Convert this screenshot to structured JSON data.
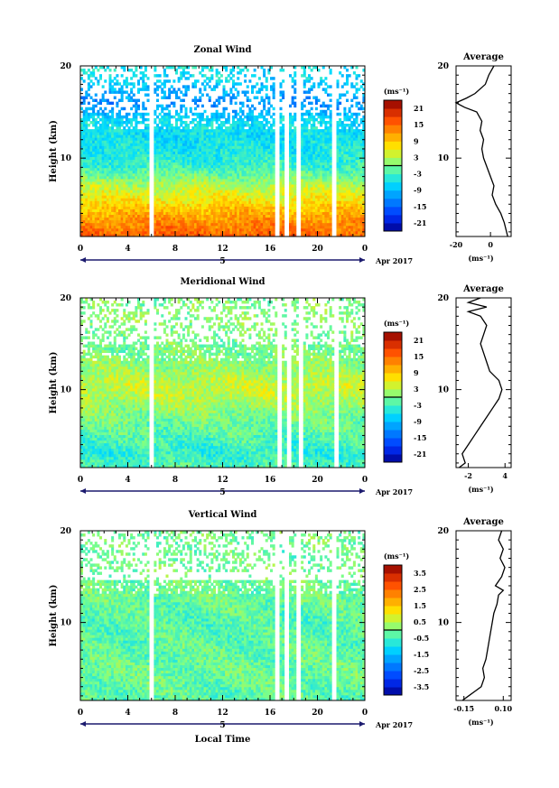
{
  "chart_data": [
    {
      "type": "heatmap",
      "title": "Zonal Wind",
      "xlabel": "",
      "ylabel": "Height (km)",
      "xlim": [
        0,
        24
      ],
      "ylim": [
        1.5,
        20
      ],
      "x_ticks": [
        "0",
        "4",
        "8",
        "12",
        "16",
        "20",
        "0"
      ],
      "x_tick_values": [
        0,
        4,
        8,
        12,
        16,
        20,
        24
      ],
      "y_ticks": [
        "20",
        "10"
      ],
      "y_tick_values": [
        20,
        10
      ],
      "day_label": "5",
      "date_label": "Apr 2017",
      "colorbar": {
        "label": "(ms⁻¹)",
        "ticks": [
          "21",
          "15",
          "9",
          "3",
          "-3",
          "-9",
          "-15",
          "-21"
        ],
        "tick_values": [
          21,
          15,
          9,
          3,
          -3,
          -9,
          -15,
          -21
        ],
        "range": [
          -24,
          24
        ]
      },
      "profile_range": [
        -20,
        12
      ],
      "levels": [
        {
          "h": 1.5,
          "v": 16
        },
        {
          "h": 3,
          "v": 13
        },
        {
          "h": 5,
          "v": 8
        },
        {
          "h": 7,
          "v": 3
        },
        {
          "h": 9,
          "v": -3
        },
        {
          "h": 10.5,
          "v": -5
        },
        {
          "h": 12,
          "v": -6
        },
        {
          "h": 14,
          "v": -6
        },
        {
          "h": 16,
          "v": -12
        },
        {
          "h": 18,
          "v": -8
        },
        {
          "h": 20,
          "v": -5
        }
      ],
      "gaps": [
        [
          5.7,
          6.1
        ],
        [
          16.5,
          16.8
        ],
        [
          17.2,
          17.5
        ],
        [
          18.2,
          18.5
        ],
        [
          21.2,
          21.6
        ]
      ],
      "average_profile": {
        "title": "Average",
        "xlabel": "(ms⁻¹)",
        "x_ticks": [
          "-20",
          "0"
        ],
        "x_tick_values": [
          -20,
          0
        ],
        "y_ticks": [
          "20",
          "10"
        ],
        "y_tick_values": [
          20,
          10
        ],
        "height": [
          1.5,
          3,
          4,
          5,
          6,
          7,
          8,
          9,
          10,
          11,
          12,
          13,
          14,
          15,
          15.5,
          16,
          16.5,
          17,
          18,
          19,
          20
        ],
        "value": [
          10,
          8,
          6,
          3,
          1,
          2,
          0,
          -2,
          -4,
          -5,
          -4,
          -6,
          -5,
          -8,
          -15,
          -20,
          -14,
          -9,
          -3,
          -1,
          2
        ]
      }
    },
    {
      "type": "heatmap",
      "title": "Meridional Wind",
      "xlabel": "",
      "ylabel": "Height (km)",
      "xlim": [
        0,
        24
      ],
      "ylim": [
        1.5,
        20
      ],
      "x_ticks": [
        "0",
        "4",
        "8",
        "12",
        "16",
        "20",
        "0"
      ],
      "x_tick_values": [
        0,
        4,
        8,
        12,
        16,
        20,
        24
      ],
      "y_ticks": [
        "20",
        "10"
      ],
      "y_tick_values": [
        20,
        10
      ],
      "day_label": "5",
      "date_label": "Apr 2017",
      "colorbar": {
        "label": "(ms⁻¹)",
        "ticks": [
          "21",
          "15",
          "9",
          "3",
          "-3",
          "-9",
          "-15",
          "-21"
        ],
        "tick_values": [
          21,
          15,
          9,
          3,
          -3,
          -9,
          -15,
          -21
        ],
        "range": [
          -24,
          24
        ]
      },
      "profile_range": [
        -4,
        5
      ],
      "levels": [
        {
          "h": 1.5,
          "v": -2
        },
        {
          "h": 3,
          "v": -4
        },
        {
          "h": 5,
          "v": -2
        },
        {
          "h": 7,
          "v": 0
        },
        {
          "h": 9,
          "v": 3
        },
        {
          "h": 10.5,
          "v": 4
        },
        {
          "h": 12,
          "v": 2
        },
        {
          "h": 14,
          "v": 0
        },
        {
          "h": 16,
          "v": 0
        },
        {
          "h": 18,
          "v": 1
        },
        {
          "h": 20,
          "v": 0
        }
      ],
      "gaps": [
        [
          5.8,
          6.2
        ],
        [
          16.7,
          17.0
        ],
        [
          17.5,
          17.8
        ],
        [
          18.4,
          18.7
        ],
        [
          21.4,
          21.8
        ]
      ],
      "average_profile": {
        "title": "Average",
        "xlabel": "(ms⁻¹)",
        "x_ticks": [
          "-2",
          "4"
        ],
        "x_tick_values": [
          -2,
          4
        ],
        "y_ticks": [
          "20",
          "10"
        ],
        "y_tick_values": [
          20,
          10
        ],
        "height": [
          1.5,
          2,
          3,
          4,
          5,
          6,
          7,
          8,
          9,
          10,
          11,
          12,
          13,
          14,
          15,
          16,
          17,
          18,
          18.5,
          19,
          19.5,
          20
        ],
        "value": [
          -3.5,
          -2.5,
          -3,
          -2,
          -1,
          0,
          1,
          2,
          3,
          3.5,
          3,
          1.5,
          1,
          0.5,
          0,
          0.5,
          1,
          0,
          -2,
          1,
          -2,
          0
        ]
      }
    },
    {
      "type": "heatmap",
      "title": "Vertical Wind",
      "xlabel": "Local Time",
      "ylabel": "Height (km)",
      "xlim": [
        0,
        24
      ],
      "ylim": [
        1.5,
        20
      ],
      "x_ticks": [
        "0",
        "4",
        "8",
        "12",
        "16",
        "20",
        "0"
      ],
      "x_tick_values": [
        0,
        4,
        8,
        12,
        16,
        20,
        24
      ],
      "y_ticks": [
        "20",
        "10"
      ],
      "y_tick_values": [
        20,
        10
      ],
      "day_label": "5",
      "date_label": "Apr 2017",
      "colorbar": {
        "label": "(ms⁻¹)",
        "ticks": [
          "3.5",
          "2.5",
          "1.5",
          "0.5",
          "-0.5",
          "-1.5",
          "-2.5",
          "-3.5"
        ],
        "tick_values": [
          3.5,
          2.5,
          1.5,
          0.5,
          -0.5,
          -1.5,
          -2.5,
          -3.5
        ],
        "range": [
          -4,
          4
        ]
      },
      "profile_range": [
        -0.2,
        0.15
      ],
      "levels": [
        {
          "h": 1.5,
          "v": -0.3
        },
        {
          "h": 4,
          "v": -0.1
        },
        {
          "h": 7,
          "v": -0.2
        },
        {
          "h": 10,
          "v": -0.3
        },
        {
          "h": 13,
          "v": -0.1
        },
        {
          "h": 16,
          "v": 0
        },
        {
          "h": 18,
          "v": -0.1
        },
        {
          "h": 20,
          "v": 0
        }
      ],
      "gaps": [
        [
          5.7,
          6.1
        ],
        [
          16.5,
          16.8
        ],
        [
          17.3,
          17.6
        ],
        [
          18.2,
          18.5
        ],
        [
          21.2,
          21.6
        ]
      ],
      "average_profile": {
        "title": "Average",
        "xlabel": "(ms⁻¹)",
        "x_ticks": [
          "-0.15",
          "0.10"
        ],
        "x_tick_values": [
          -0.15,
          0.1
        ],
        "y_ticks": [
          "20",
          "10"
        ],
        "y_tick_values": [
          20,
          10
        ],
        "height": [
          1.5,
          2,
          2.5,
          3,
          4,
          5,
          6,
          7,
          8,
          9,
          10,
          11,
          12,
          13,
          13.5,
          14,
          15,
          16,
          17,
          18,
          19,
          20
        ],
        "value": [
          -0.16,
          -0.12,
          -0.08,
          -0.04,
          -0.02,
          -0.03,
          -0.01,
          0.0,
          0.01,
          0.02,
          0.03,
          0.04,
          0.06,
          0.07,
          0.1,
          0.05,
          0.09,
          0.11,
          0.08,
          0.1,
          0.07,
          0.09
        ]
      }
    }
  ]
}
